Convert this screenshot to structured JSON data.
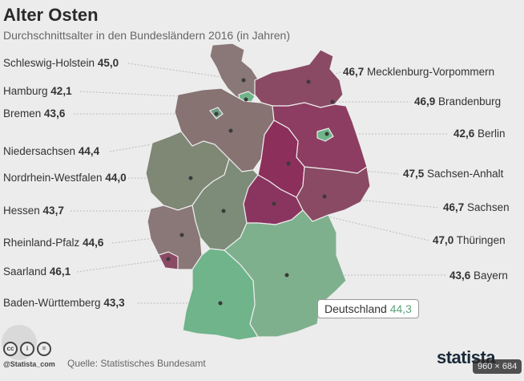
{
  "title": "Alter Osten",
  "subtitle": "Durchschnittsalter in den Bundesländern 2016 (in Jahren)",
  "states": [
    {
      "name": "Schleswig-Holstein",
      "value": "45,0"
    },
    {
      "name": "Hamburg",
      "value": "42,1"
    },
    {
      "name": "Bremen",
      "value": "43,6"
    },
    {
      "name": "Niedersachsen",
      "value": "44,4"
    },
    {
      "name": "Nordrhein-Westfalen",
      "value": "44,0"
    },
    {
      "name": "Hessen",
      "value": "43,7"
    },
    {
      "name": "Rheinland-Pfalz",
      "value": "44,6"
    },
    {
      "name": "Saarland",
      "value": "46,1"
    },
    {
      "name": "Baden-Württemberg",
      "value": "43,3"
    },
    {
      "name": "Mecklenburg-Vorpommern",
      "value": "46,7"
    },
    {
      "name": "Brandenburg",
      "value": "46,9"
    },
    {
      "name": "Berlin",
      "value": "42,6"
    },
    {
      "name": "Sachsen-Anhalt",
      "value": "47,5"
    },
    {
      "name": "Sachsen",
      "value": "46,7"
    },
    {
      "name": "Thüringen",
      "value": "47,0"
    },
    {
      "name": "Bayern",
      "value": "43,6"
    }
  ],
  "average": {
    "label": "Deutschland",
    "value": "44,3"
  },
  "source": "Quelle: Statistisches Bundesamt",
  "handle": "@Statista_com",
  "logo": "statista",
  "resolution": "960 × 684",
  "colors": {
    "young": "#6fb48a",
    "mid": "#8a7777",
    "old": "#8c2f5a",
    "background": "#ececec"
  }
}
